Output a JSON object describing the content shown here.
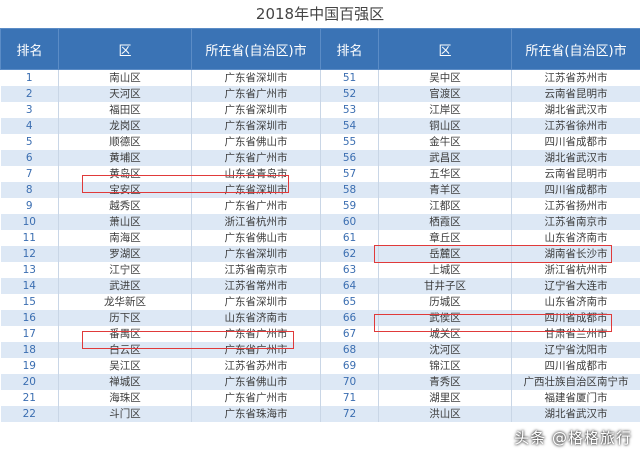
{
  "title": "2018年中国百强区",
  "headers": [
    "排名",
    "区",
    "所在省(自治区)市",
    "排名",
    "区",
    "所在省(自治区)市"
  ],
  "rows": [
    {
      "r1": "1",
      "d1": "南山区",
      "p1": "广东省深圳市",
      "r2": "51",
      "d2": "吴中区",
      "p2": "江苏省苏州市"
    },
    {
      "r1": "2",
      "d1": "天河区",
      "p1": "广东省广州市",
      "r2": "52",
      "d2": "官渡区",
      "p2": "云南省昆明市"
    },
    {
      "r1": "3",
      "d1": "福田区",
      "p1": "广东省深圳市",
      "r2": "53",
      "d2": "江岸区",
      "p2": "湖北省武汉市"
    },
    {
      "r1": "4",
      "d1": "龙岗区",
      "p1": "广东省深圳市",
      "r2": "54",
      "d2": "铜山区",
      "p2": "江苏省徐州市"
    },
    {
      "r1": "5",
      "d1": "顺德区",
      "p1": "广东省佛山市",
      "r2": "55",
      "d2": "金牛区",
      "p2": "四川省成都市"
    },
    {
      "r1": "6",
      "d1": "黄埔区",
      "p1": "广东省广州市",
      "r2": "56",
      "d2": "武昌区",
      "p2": "湖北省武汉市"
    },
    {
      "r1": "7",
      "d1": "黄岛区",
      "p1": "山东省青岛市",
      "r2": "57",
      "d2": "五华区",
      "p2": "云南省昆明市"
    },
    {
      "r1": "8",
      "d1": "宝安区",
      "p1": "广东省深圳市",
      "r2": "58",
      "d2": "青羊区",
      "p2": "四川省成都市"
    },
    {
      "r1": "9",
      "d1": "越秀区",
      "p1": "广东省广州市",
      "r2": "59",
      "d2": "江都区",
      "p2": "江苏省扬州市"
    },
    {
      "r1": "10",
      "d1": "萧山区",
      "p1": "浙江省杭州市",
      "r2": "60",
      "d2": "栖霞区",
      "p2": "江苏省南京市"
    },
    {
      "r1": "11",
      "d1": "南海区",
      "p1": "广东省佛山市",
      "r2": "61",
      "d2": "章丘区",
      "p2": "山东省济南市"
    },
    {
      "r1": "12",
      "d1": "罗湖区",
      "p1": "广东省深圳市",
      "r2": "62",
      "d2": "岳麓区",
      "p2": "湖南省长沙市"
    },
    {
      "r1": "13",
      "d1": "江宁区",
      "p1": "江苏省南京市",
      "r2": "63",
      "d2": "上城区",
      "p2": "浙江省杭州市"
    },
    {
      "r1": "14",
      "d1": "武进区",
      "p1": "江苏省常州市",
      "r2": "64",
      "d2": "甘井子区",
      "p2": "辽宁省大连市"
    },
    {
      "r1": "15",
      "d1": "龙华新区",
      "p1": "广东省深圳市",
      "r2": "65",
      "d2": "历城区",
      "p2": "山东省济南市"
    },
    {
      "r1": "16",
      "d1": "历下区",
      "p1": "山东省济南市",
      "r2": "66",
      "d2": "武侯区",
      "p2": "四川省成都市"
    },
    {
      "r1": "17",
      "d1": "番禺区",
      "p1": "广东省广州市",
      "r2": "67",
      "d2": "城关区",
      "p2": "甘肃省兰州市"
    },
    {
      "r1": "18",
      "d1": "白云区",
      "p1": "广东省广州市",
      "r2": "68",
      "d2": "沈河区",
      "p2": "辽宁省沈阳市"
    },
    {
      "r1": "19",
      "d1": "吴江区",
      "p1": "江苏省苏州市",
      "r2": "69",
      "d2": "锦江区",
      "p2": "四川省成都市"
    },
    {
      "r1": "20",
      "d1": "禅城区",
      "p1": "广东省佛山市",
      "r2": "70",
      "d2": "青秀区",
      "p2": "广西壮族自治区南宁市"
    },
    {
      "r1": "21",
      "d1": "海珠区",
      "p1": "广东省广州市",
      "r2": "71",
      "d2": "湖里区",
      "p2": "福建省厦门市"
    },
    {
      "r1": "22",
      "d1": "斗门区",
      "p1": "广东省珠海市",
      "r2": "72",
      "d2": "洪山区",
      "p2": "湖北省武汉市"
    }
  ],
  "watermark": "头条 @格格旅行"
}
